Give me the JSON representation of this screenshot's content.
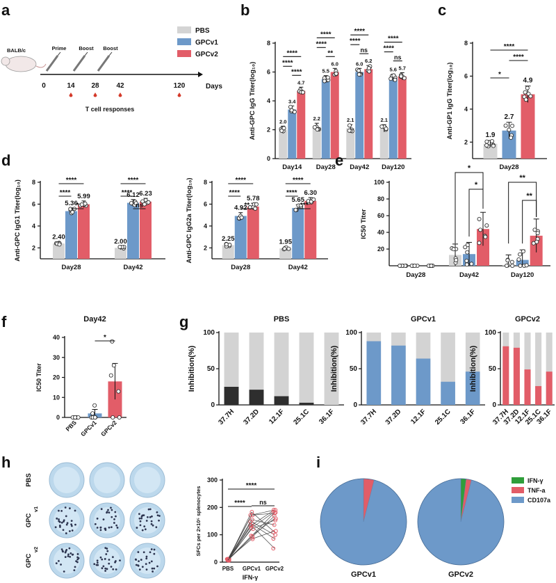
{
  "figure": {
    "colors": {
      "pbs": "#d4d4d4",
      "gpcv1": "#6d99c9",
      "gpcv2": "#e25d68",
      "dark": "#2e2e2e",
      "gray": "#d3d3d3",
      "green": "#2f9e3a",
      "pieBlue": "#6d99c9",
      "pieRed": "#e25d68"
    },
    "panel_letters": {
      "a": "a",
      "b": "b",
      "c": "c",
      "d": "d",
      "e": "e",
      "f": "f",
      "g": "g",
      "h": "h",
      "i": "i"
    }
  },
  "panel_a": {
    "mouse_label": "BALB/c",
    "legend": [
      "PBS",
      "GPCv1",
      "GPCv2"
    ],
    "steps": [
      "Prime",
      "Boost",
      "Boost"
    ],
    "timepoints": [
      "0",
      "14",
      "28",
      "42",
      "120"
    ],
    "axis_label": "Days",
    "tcell_label": "T cell responses"
  },
  "chart_data": [
    {
      "id": "b",
      "type": "bar",
      "categories": [
        "Day14",
        "Day28",
        "Day42",
        "Day120"
      ],
      "series": [
        {
          "name": "PBS",
          "values": [
            2.0,
            2.2,
            2.1,
            2.1
          ]
        },
        {
          "name": "GPCv1",
          "values": [
            3.4,
            5.5,
            6.0,
            5.6
          ]
        },
        {
          "name": "GPCv2",
          "values": [
            4.7,
            6.0,
            6.2,
            5.7
          ]
        }
      ],
      "labels": [
        [
          "2.0",
          "3.4",
          "4.7"
        ],
        [
          "2.2",
          "5.5",
          "6.0"
        ],
        [
          "2.1",
          "6.0",
          "6.2"
        ],
        [
          "2.1",
          "5.6",
          "5.7"
        ]
      ],
      "ylabel": "Anti-GPC IgG Titer(log₁₀)",
      "ylim": [
        0,
        8
      ],
      "yticks": [
        "0",
        "2",
        "4",
        "6",
        "8"
      ],
      "sig": [
        [
          "****",
          "****",
          "****"
        ],
        [
          "****",
          "****",
          "**"
        ],
        [
          "****",
          "****",
          "ns"
        ],
        [
          "****",
          "****",
          "ns"
        ]
      ]
    },
    {
      "id": "c",
      "type": "bar",
      "categories": [
        "Day28"
      ],
      "series": [
        {
          "name": "PBS",
          "values": [
            1.9
          ]
        },
        {
          "name": "GPCv1",
          "values": [
            2.7
          ]
        },
        {
          "name": "GPCv2",
          "values": [
            4.9
          ]
        }
      ],
      "labels": [
        "1.9",
        "2.7",
        "4.9"
      ],
      "ylabel": "Anti-GP1 IgG Titer(log₁₀)",
      "ylim": [
        1,
        8
      ],
      "yticks": [
        "2",
        "4",
        "6",
        "8"
      ],
      "sig": [
        "****",
        "*",
        "****"
      ]
    },
    {
      "id": "d1",
      "type": "bar",
      "categories": [
        "Day28",
        "Day42"
      ],
      "series": [
        {
          "name": "PBS",
          "values": [
            2.4,
            2.0
          ]
        },
        {
          "name": "GPCv1",
          "values": [
            5.36,
            6.12
          ]
        },
        {
          "name": "GPCv2",
          "values": [
            5.99,
            6.23
          ]
        }
      ],
      "labels": [
        [
          "2.40",
          "5.36",
          "5.99"
        ],
        [
          "2.00",
          "6.12",
          "6.23"
        ]
      ],
      "ylabel": "Anti-GPC IgG1 Titer(log₁₀)",
      "ylim": [
        1,
        8
      ],
      "yticks": [
        "2",
        "4",
        "6",
        "8"
      ],
      "sig": [
        [
          "****",
          "****",
          "*"
        ],
        [
          "****",
          "****",
          "ns"
        ]
      ]
    },
    {
      "id": "d2",
      "type": "bar",
      "categories": [
        "Day28",
        "Day42"
      ],
      "series": [
        {
          "name": "PBS",
          "values": [
            2.25,
            1.95
          ]
        },
        {
          "name": "GPCv1",
          "values": [
            4.92,
            5.65
          ]
        },
        {
          "name": "GPCv2",
          "values": [
            5.78,
            6.3
          ]
        }
      ],
      "labels": [
        [
          "2.25",
          "4.92",
          "5.78"
        ],
        [
          "1.95",
          "5.65",
          "6.30"
        ]
      ],
      "ylabel": "Anti-GPC IgG2a Titer(log₁₀)",
      "ylim": [
        1,
        8
      ],
      "yticks": [
        "2",
        "4",
        "6",
        "8"
      ],
      "sig": [
        [
          "****",
          "****",
          "**"
        ],
        [
          "****",
          "****",
          "***"
        ]
      ]
    },
    {
      "id": "e",
      "type": "bar",
      "categories": [
        "Day28",
        "Day42",
        "Day120"
      ],
      "series": [
        {
          "name": "PBS",
          "values": [
            0,
            13,
            1
          ]
        },
        {
          "name": "GPCv1",
          "values": [
            0,
            14,
            7
          ]
        },
        {
          "name": "GPCv2",
          "values": [
            0,
            44,
            36
          ]
        }
      ],
      "ylabel": "IC50 Titer",
      "ylim": [
        0,
        100
      ],
      "yticks": [
        "20",
        "40",
        "60",
        "80",
        "100"
      ],
      "sig": [
        [
          "*",
          "*"
        ],
        [
          "**",
          "**"
        ]
      ]
    },
    {
      "id": "f",
      "type": "bar",
      "title": "Day42",
      "categories": [
        "PBS",
        "GPCv1",
        "GPCv2"
      ],
      "values": [
        0,
        2,
        18
      ],
      "ylabel": "IC50 Titer",
      "ylim": [
        0,
        40
      ],
      "yticks": [
        "0",
        "10",
        "20",
        "30",
        "40"
      ],
      "sig": "*"
    },
    {
      "id": "g",
      "type": "stacked-bar",
      "ylabel": "Inhibition(%)",
      "yticks": [
        "0",
        "50",
        "100"
      ],
      "categories": [
        "37.7H",
        "37.2D",
        "12.1F",
        "25.1C",
        "36.1F"
      ],
      "panels": [
        {
          "title": "PBS",
          "values": [
            25,
            21,
            12,
            3,
            0
          ]
        },
        {
          "title": "GPCv1",
          "values": [
            88,
            82,
            64,
            32,
            46
          ]
        },
        {
          "title": "GPCv2",
          "values": [
            81,
            79,
            49,
            26,
            46
          ]
        }
      ]
    },
    {
      "id": "h",
      "type": "scatter",
      "xlabel": "IFN-γ",
      "categories": [
        "PBS",
        "GPCv1",
        "GPCv2"
      ],
      "ylabel": "SFCs per 2×10⁵ splenocytes",
      "ylim": [
        0,
        300
      ],
      "yticks": [
        "0",
        "100",
        "200",
        "300"
      ],
      "sig": [
        "****",
        "****",
        "ns"
      ],
      "rows": [
        "PBS",
        "GPC",
        "GPC"
      ],
      "row_subs": [
        "",
        "v1",
        "v2"
      ]
    },
    {
      "id": "i",
      "type": "pie",
      "legend": [
        "IFN-γ",
        "TNF-a",
        "CD107a"
      ],
      "pies": [
        {
          "title": "GPCv1",
          "values": [
            0,
            4,
            96
          ]
        },
        {
          "title": "GPCv2",
          "values": [
            2,
            2,
            96
          ]
        }
      ]
    }
  ],
  "panel_g_ytick_top": "100"
}
